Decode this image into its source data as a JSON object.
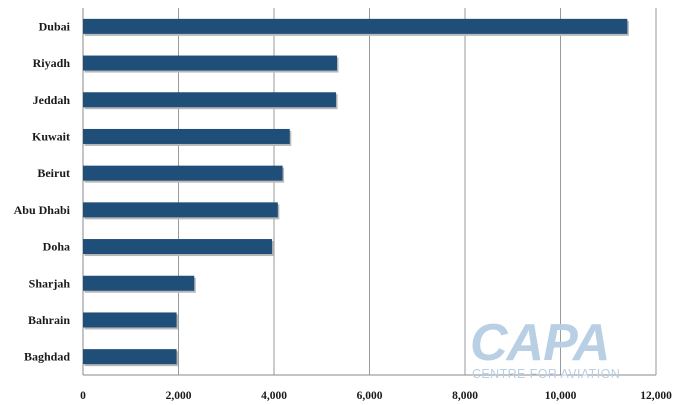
{
  "chart_data": {
    "type": "bar",
    "orientation": "horizontal",
    "categories": [
      "Dubai",
      "Riyadh",
      "Jeddah",
      "Kuwait",
      "Beirut",
      "Abu Dhabi",
      "Doha",
      "Sharjah",
      "Bahrain",
      "Baghdad"
    ],
    "values": [
      11400,
      5320,
      5300,
      4330,
      4180,
      4080,
      3960,
      2330,
      1960,
      1960
    ],
    "xlim": [
      0,
      12000
    ],
    "xticks": [
      0,
      2000,
      4000,
      6000,
      8000,
      10000,
      12000
    ],
    "xtick_labels": [
      "0",
      "2,000",
      "4,000",
      "6,000",
      "8,000",
      "10,000",
      "12,000"
    ],
    "grid": "vertical",
    "bar_color": "#1f4e79",
    "title": "",
    "xlabel": "",
    "ylabel": ""
  },
  "logo": {
    "main_text": "CAPA",
    "sub_text": "CENTRE FOR AVIATION",
    "color": "#b9cfe3"
  }
}
